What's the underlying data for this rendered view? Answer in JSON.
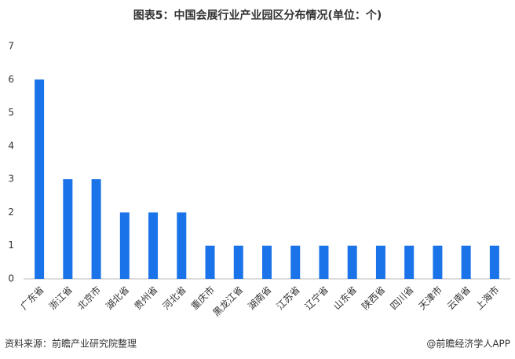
{
  "chart_data": {
    "type": "bar",
    "title": "图表5：中国会展行业产业园区分布情况(单位：个)",
    "categories": [
      "广东省",
      "浙江省",
      "北京市",
      "湖北省",
      "贵州省",
      "河北省",
      "重庆市",
      "黑龙江省",
      "湖南省",
      "江苏省",
      "辽宁省",
      "山东省",
      "陕西省",
      "四川省",
      "天津市",
      "云南省",
      "上海市"
    ],
    "values": [
      6,
      3,
      3,
      2,
      2,
      2,
      1,
      1,
      1,
      1,
      1,
      1,
      1,
      1,
      1,
      1,
      1
    ],
    "color": "#1a73e8",
    "ylim": [
      0,
      7
    ],
    "yticks": [
      0,
      1,
      2,
      3,
      4,
      5,
      6,
      7
    ],
    "grid": false,
    "source": "资料来源：前瞻产业研究院整理",
    "credit": "@前瞻经济学人APP"
  }
}
